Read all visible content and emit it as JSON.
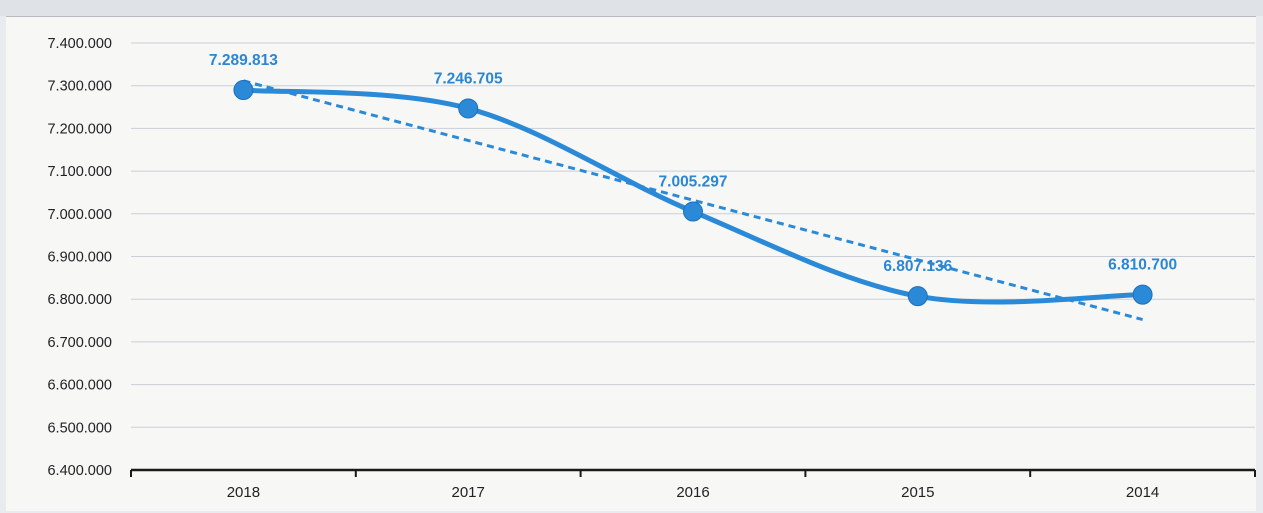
{
  "chart_data": {
    "type": "line",
    "categories": [
      "2018",
      "2017",
      "2016",
      "2015",
      "2014"
    ],
    "series": [
      {
        "values": [
          7289813,
          7246705,
          7005297,
          6807136,
          6810700
        ],
        "data_labels": [
          "7.289.813",
          "7.246.705",
          "7.005.297",
          "6.807.136",
          "6.810.700"
        ],
        "line_color": "#2a8ad8",
        "smooth": true,
        "markers": true
      }
    ],
    "trendline": {
      "type": "linear",
      "style": "dashed",
      "color": "#2a8ad8"
    },
    "yticks": [
      {
        "value": 7400000,
        "label": "7.400.000"
      },
      {
        "value": 7300000,
        "label": "7.300.000"
      },
      {
        "value": 7200000,
        "label": "7.200.000"
      },
      {
        "value": 7100000,
        "label": "7.100.000"
      },
      {
        "value": 7000000,
        "label": "7.000.000"
      },
      {
        "value": 6900000,
        "label": "6.900.000"
      },
      {
        "value": 6800000,
        "label": "6.800.000"
      },
      {
        "value": 6700000,
        "label": "6.700.000"
      },
      {
        "value": 6600000,
        "label": "6.600.000"
      },
      {
        "value": 6500000,
        "label": "6.500.000"
      },
      {
        "value": 6400000,
        "label": "6.400.000"
      }
    ],
    "ylim": [
      6400000,
      7400000
    ],
    "grid": true,
    "legend": "none",
    "title": "",
    "xlabel": "",
    "ylabel": ""
  }
}
